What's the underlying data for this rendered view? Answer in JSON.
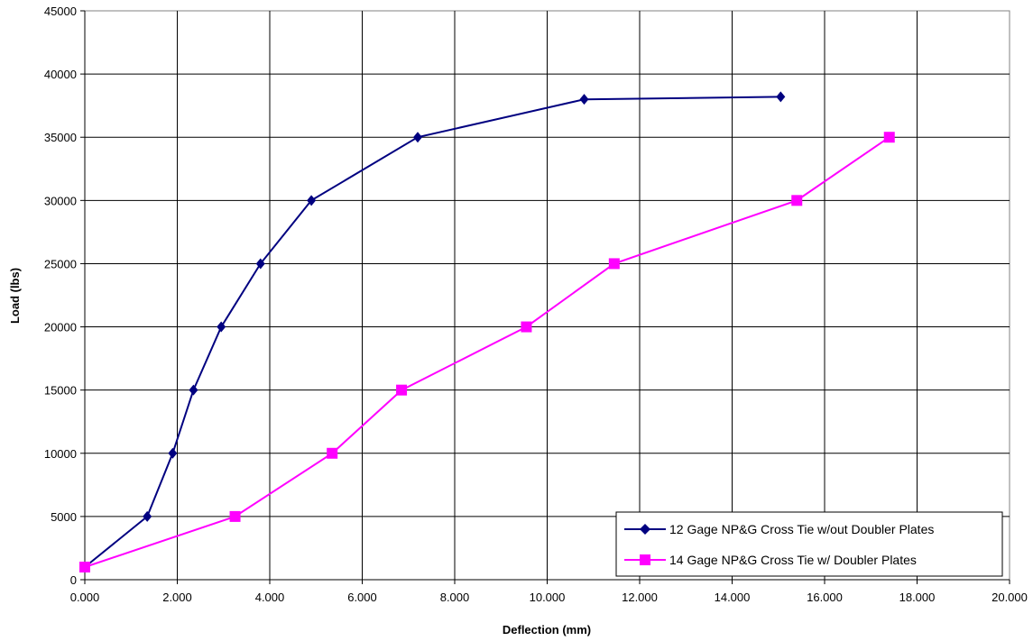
{
  "chart_data": {
    "type": "line",
    "title": "",
    "xlabel": "Deflection (mm)",
    "ylabel": "Load (lbs)",
    "xlim": [
      0,
      20
    ],
    "ylim": [
      0,
      45000
    ],
    "x_ticks": [
      "0.000",
      "2.000",
      "4.000",
      "6.000",
      "8.000",
      "10.000",
      "12.000",
      "14.000",
      "16.000",
      "18.000",
      "20.000"
    ],
    "y_ticks": [
      "0",
      "5000",
      "10000",
      "15000",
      "20000",
      "25000",
      "30000",
      "35000",
      "40000",
      "45000"
    ],
    "grid": true,
    "legend_position": "bottom-right",
    "series": [
      {
        "name": "12 Gage NP&G Cross Tie w/out Doubler Plates",
        "color": "#000080",
        "marker": "diamond",
        "points": [
          {
            "x": 0.0,
            "y": 1000
          },
          {
            "x": 1.35,
            "y": 5000
          },
          {
            "x": 1.9,
            "y": 10000
          },
          {
            "x": 2.35,
            "y": 15000
          },
          {
            "x": 2.95,
            "y": 20000
          },
          {
            "x": 3.8,
            "y": 25000
          },
          {
            "x": 4.9,
            "y": 30000
          },
          {
            "x": 7.2,
            "y": 35000
          },
          {
            "x": 10.8,
            "y": 38000
          },
          {
            "x": 15.05,
            "y": 38200
          }
        ]
      },
      {
        "name": "14 Gage NP&G Cross Tie w/ Doubler Plates",
        "color": "#FF00FF",
        "marker": "square",
        "points": [
          {
            "x": 0.0,
            "y": 1000
          },
          {
            "x": 3.25,
            "y": 5000
          },
          {
            "x": 5.35,
            "y": 10000
          },
          {
            "x": 6.85,
            "y": 15000
          },
          {
            "x": 9.55,
            "y": 20000
          },
          {
            "x": 11.45,
            "y": 25000
          },
          {
            "x": 15.4,
            "y": 30000
          },
          {
            "x": 17.4,
            "y": 35000
          }
        ]
      }
    ]
  }
}
